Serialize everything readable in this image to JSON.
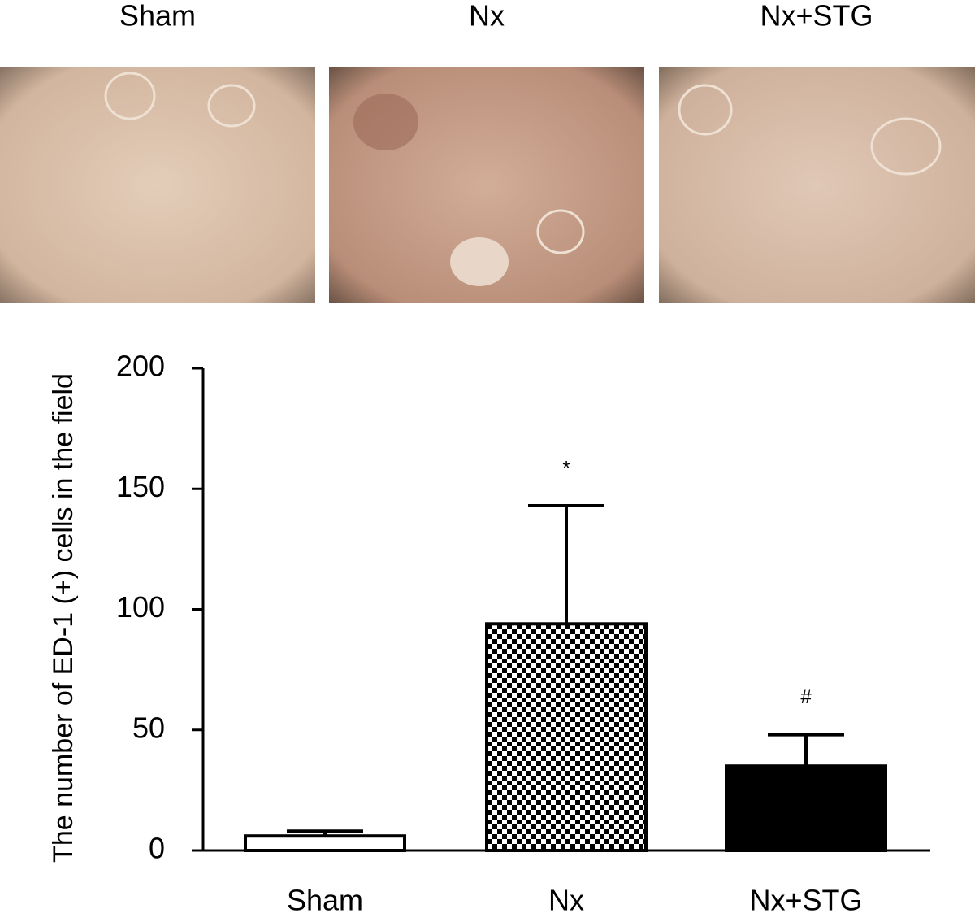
{
  "chart_data": {
    "type": "bar",
    "panel_labels": [
      "Sham",
      "Nx",
      "Nx+STG"
    ],
    "y_label": "The number of ED-1 (+) cells in the field",
    "categories": [
      "Sham",
      "Nx",
      "Nx+STG"
    ],
    "values": [
      6,
      94,
      35
    ],
    "errors": [
      2,
      49,
      13
    ],
    "fills": [
      "white",
      "checkered",
      "black"
    ],
    "annotations": [
      null,
      "*",
      "#"
    ],
    "ylim": [
      0,
      200
    ],
    "yticks": [
      0,
      50,
      100,
      150,
      200
    ],
    "grid": false
  }
}
